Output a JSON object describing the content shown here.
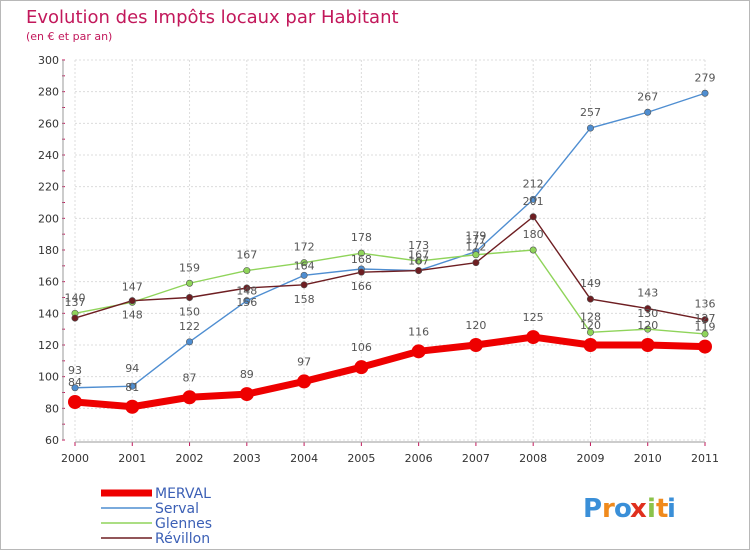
{
  "chart_data": {
    "type": "line",
    "title": "Evolution des Impôts locaux par Habitant",
    "subtitle": "(en € et par an)",
    "xlabel": "",
    "ylabel": "",
    "ylim": [
      60,
      300
    ],
    "y_ticks": [
      "60",
      "80",
      "100",
      "120",
      "140",
      "160",
      "180",
      "200",
      "220",
      "240",
      "260",
      "280",
      "300"
    ],
    "categories": [
      "2000",
      "2001",
      "2002",
      "2003",
      "2004",
      "2005",
      "2006",
      "2007",
      "2008",
      "2009",
      "2010",
      "2011"
    ],
    "legend_position": "bottom-left",
    "series": [
      {
        "name": "Serval",
        "color": "#4f8ed1",
        "values": [
          93,
          94,
          122,
          148,
          164,
          168,
          167,
          179,
          212,
          257,
          267,
          279
        ],
        "labels": [
          "93",
          "94",
          "122",
          "148",
          "164",
          "168",
          "167",
          "179",
          "212",
          "257",
          "267",
          "279"
        ]
      },
      {
        "name": "Glennes",
        "color": "#8fd45a",
        "values": [
          140,
          147,
          159,
          167,
          172,
          178,
          173,
          177,
          180,
          128,
          130,
          127
        ],
        "labels": [
          "140",
          "147",
          "159",
          "167",
          "172",
          "178",
          "173",
          "177",
          "180",
          "128",
          "130",
          "127"
        ]
      },
      {
        "name": "Révillon",
        "color": "#6e1e22",
        "values": [
          137,
          148,
          150,
          156,
          158,
          166,
          167,
          172,
          201,
          149,
          143,
          136
        ],
        "labels": [
          "137",
          "148",
          "150",
          "156",
          "158",
          "166",
          "167",
          "172",
          "201",
          "149",
          "143",
          "136"
        ]
      },
      {
        "name": "MERVAL",
        "color": "#ee0000",
        "values": [
          84,
          81,
          87,
          89,
          97,
          106,
          116,
          120,
          125,
          120,
          120,
          119
        ],
        "labels": [
          "84",
          "81",
          "87",
          "89",
          "97",
          "106",
          "116",
          "120",
          "125",
          "120",
          "120",
          "119"
        ]
      }
    ],
    "legend": [
      "MERVAL",
      "Serval",
      "Glennes",
      "Révillon"
    ]
  },
  "logo": {
    "text": "Proxiti",
    "letters": [
      "P",
      "r",
      "o",
      "x",
      "i",
      "t",
      "i"
    ],
    "colors": [
      "#3a8fd8",
      "#f08a1c",
      "#3a8fd8",
      "#e0301e",
      "#8bc34a",
      "#f08a1c",
      "#3a8fd8"
    ]
  }
}
